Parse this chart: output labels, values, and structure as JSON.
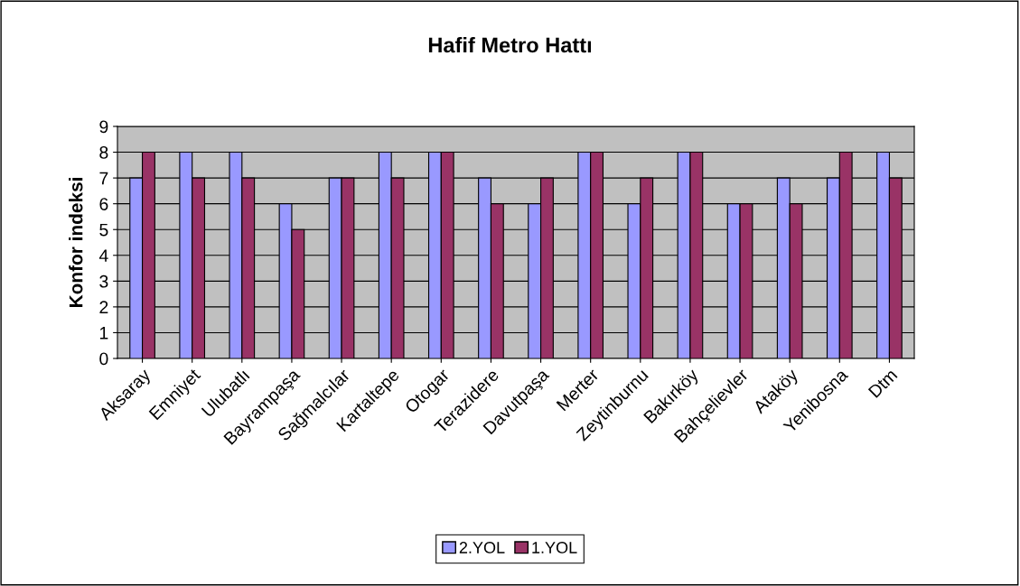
{
  "chart_data": {
    "type": "bar",
    "title": "Hafif Metro Hattı",
    "ylabel": "Konfor indeksi",
    "categories": [
      "Aksaray",
      "Emniyet",
      "Ulubatlı",
      "Bayrampaşa",
      "Sağmalcılar",
      "Kartaltepe",
      "Otogar",
      "Terazidere",
      "Davutpaşa",
      "Merter",
      "Zeytinburnu",
      "Bakırköy",
      "Bahçelievler",
      "Ataköy",
      "Yenibosna",
      "Dtm"
    ],
    "series": [
      {
        "name": "2.YOL",
        "color": "#9999ff",
        "values": [
          7,
          8,
          8,
          6,
          7,
          8,
          8,
          7,
          6,
          8,
          6,
          8,
          6,
          7,
          7,
          8
        ]
      },
      {
        "name": "1.YOL",
        "color": "#993366",
        "values": [
          8,
          7,
          7,
          5,
          7,
          7,
          8,
          6,
          7,
          8,
          7,
          8,
          6,
          6,
          8,
          7
        ]
      }
    ],
    "ylim": [
      0,
      9
    ],
    "yticks": [
      0,
      1,
      2,
      3,
      4,
      5,
      6,
      7,
      8,
      9
    ],
    "grid": "y",
    "legend": "bottom"
  }
}
